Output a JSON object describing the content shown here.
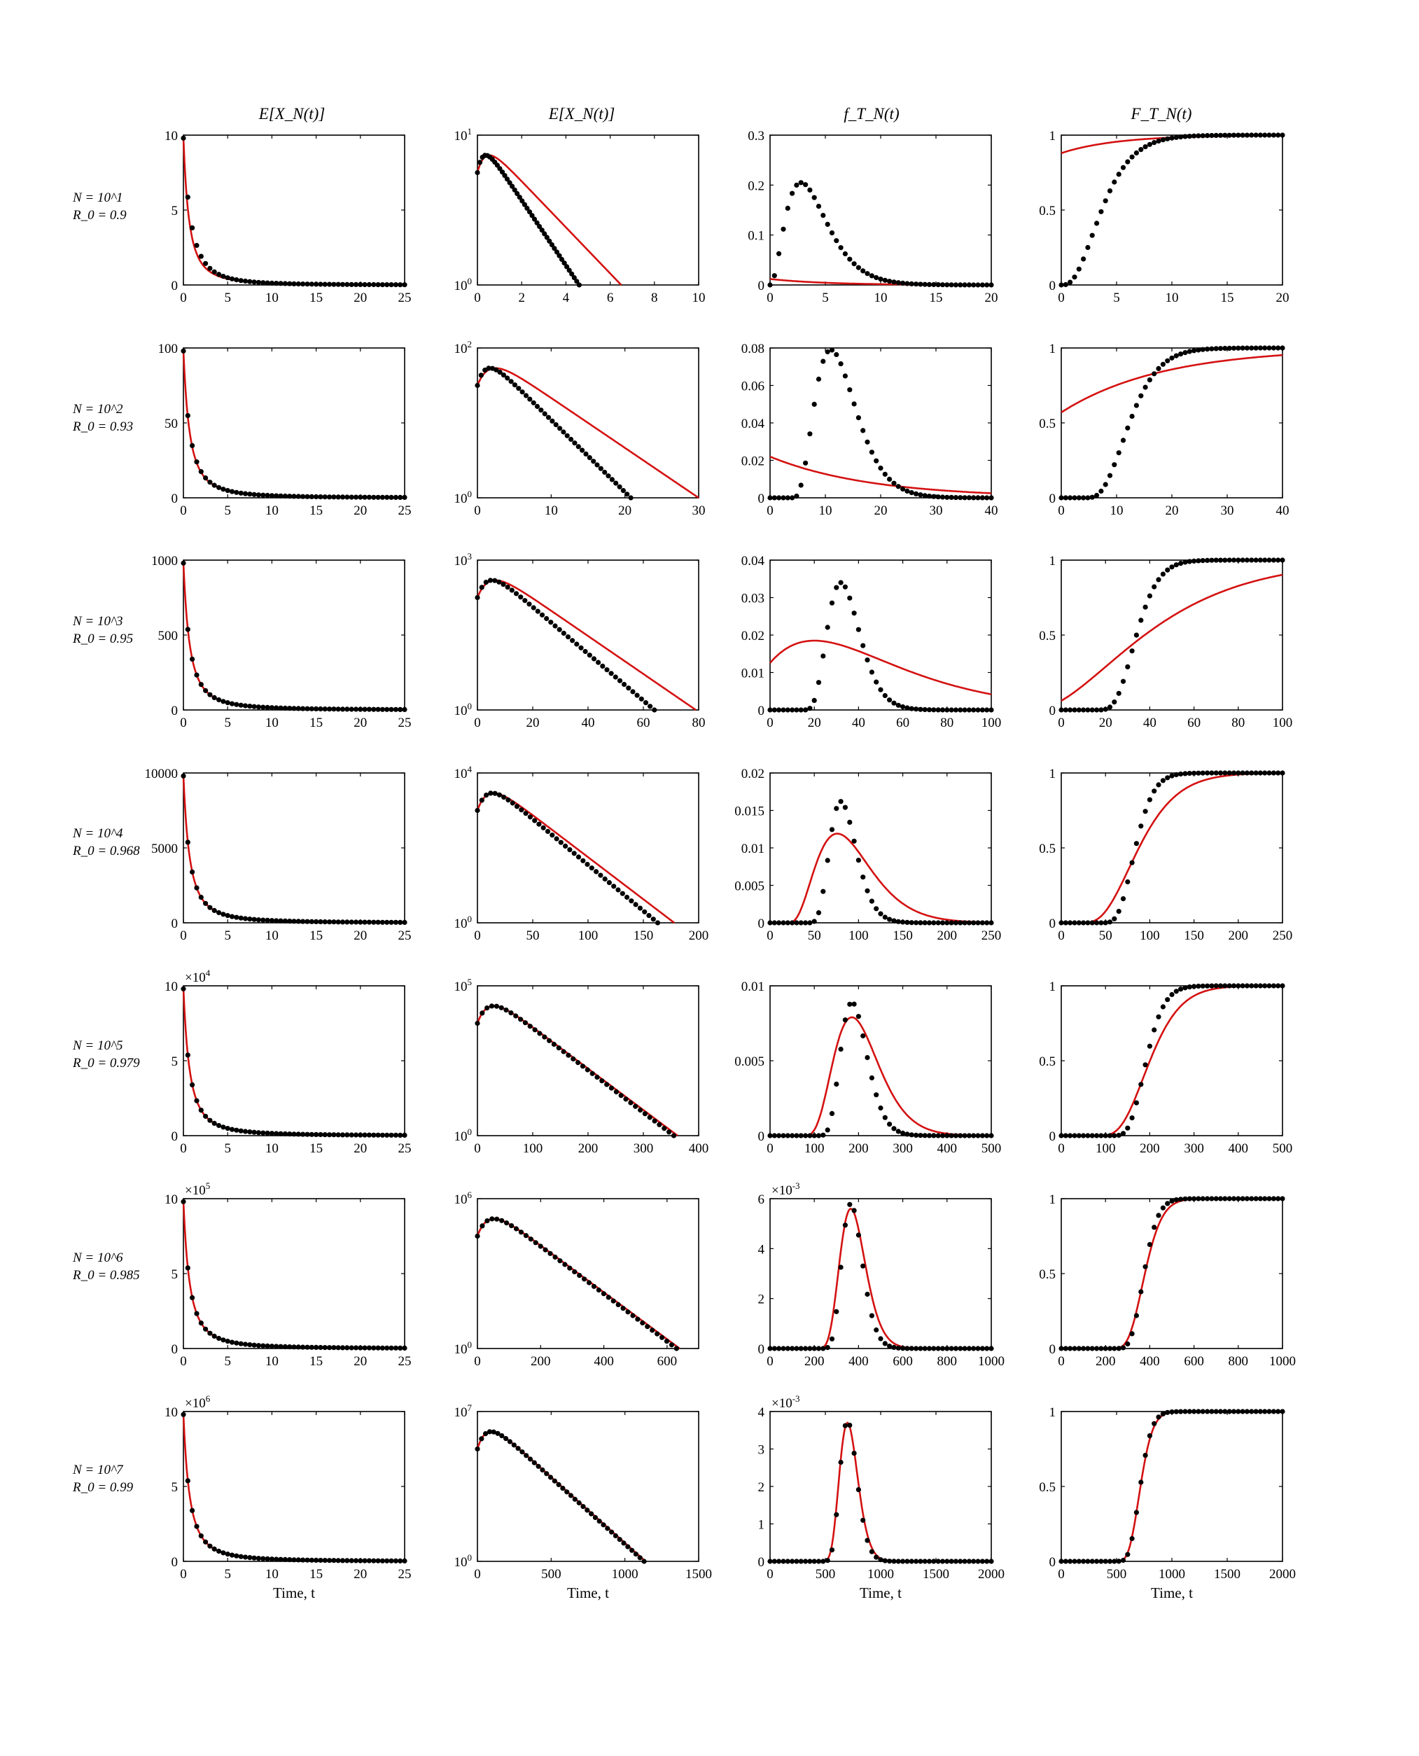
{
  "column_titles": [
    "E[X_N(t)]",
    "E[X_N(t)]",
    "f_T_N(t)",
    "F_T_N(t)"
  ],
  "xlabel": "Time, t",
  "rows": [
    {
      "n_label": "N = 10^1",
      "r_label": "R_0 = 0.9"
    },
    {
      "n_label": "N = 10^2",
      "r_label": "R_0 = 0.93"
    },
    {
      "n_label": "N = 10^3",
      "r_label": "R_0 = 0.95"
    },
    {
      "n_label": "N = 10^4",
      "r_label": "R_0 = 0.968"
    },
    {
      "n_label": "N = 10^5",
      "r_label": "R_0 = 0.979"
    },
    {
      "n_label": "N = 10^6",
      "r_label": "R_0 = 0.985"
    },
    {
      "n_label": "N = 10^7",
      "r_label": "R_0 = 0.99"
    }
  ],
  "colors": {
    "dots": "#000000",
    "line": "#d41111",
    "axis": "#000000"
  },
  "chart_data": [
    {
      "type": "scatter",
      "row": 0,
      "col": 0,
      "xlim": [
        0,
        25
      ],
      "ylim": [
        0,
        10
      ],
      "xticks": [
        "0",
        "5",
        "10",
        "15",
        "20",
        "25"
      ],
      "yticks": [
        "0",
        "5",
        "10"
      ],
      "exponent": "",
      "yscale": "linear",
      "model": {
        "kind": "mean",
        "N": 10,
        "c": 0.9,
        "r": 0.45,
        "p": 1.0
      },
      "series": [
        {
          "kind": "dots",
          "r": 0.8,
          "p": 1.3
        },
        {
          "kind": "line",
          "r": 0.45,
          "p": 1.0
        }
      ]
    },
    {
      "type": "scatter",
      "row": 0,
      "col": 1,
      "xlim": [
        0,
        10
      ],
      "ylim": [
        1,
        10
      ],
      "xticks": [
        "0",
        "2",
        "4",
        "6",
        "8",
        "10"
      ],
      "yticks": [
        "10^0",
        "10^1"
      ],
      "exponent": "",
      "yscale": "log",
      "model": {
        "kind": "logmean",
        "N": 10
      },
      "series": [
        {
          "kind": "dots",
          "end": 4.6
        },
        {
          "kind": "line",
          "end": 6.5
        }
      ]
    },
    {
      "type": "scatter",
      "row": 0,
      "col": 2,
      "xlim": [
        0,
        20
      ],
      "ylim": [
        0,
        0.3
      ],
      "xticks": [
        "0",
        "5",
        "10",
        "15",
        "20"
      ],
      "yticks": [
        "0",
        "0.1",
        "0.2",
        "0.3"
      ],
      "exponent": "",
      "yscale": "linear",
      "series": [
        {
          "kind": "dots",
          "dist": "gamma",
          "peak": 2.8,
          "peakval": 0.205,
          "shape": 3.2
        },
        {
          "kind": "line",
          "dist": "exp",
          "start": 0.012,
          "rate": 0.2
        }
      ]
    },
    {
      "type": "scatter",
      "row": 0,
      "col": 3,
      "xlim": [
        0,
        20
      ],
      "ylim": [
        0,
        1
      ],
      "xticks": [
        "0",
        "5",
        "10",
        "15",
        "20"
      ],
      "yticks": [
        "0",
        "0.5",
        "1"
      ],
      "exponent": "",
      "yscale": "linear",
      "series": [
        {
          "kind": "dots",
          "dist": "gammacdf",
          "peak": 2.8,
          "shape": 3.2
        },
        {
          "kind": "line",
          "dist": "expcdf",
          "start": 0.88,
          "rate": 0.2
        }
      ]
    },
    {
      "type": "scatter",
      "row": 1,
      "col": 0,
      "xlim": [
        0,
        25
      ],
      "ylim": [
        0,
        100
      ],
      "xticks": [
        "0",
        "5",
        "10",
        "15",
        "20",
        "25"
      ],
      "yticks": [
        "0",
        "50",
        "100"
      ],
      "exponent": "",
      "yscale": "linear",
      "model": {
        "kind": "mean",
        "N": 100
      },
      "series": [
        {
          "kind": "dots",
          "r": 0.55,
          "p": 1.05
        },
        {
          "kind": "line",
          "r": 0.5,
          "p": 1.0
        }
      ]
    },
    {
      "type": "scatter",
      "row": 1,
      "col": 1,
      "xlim": [
        0,
        30
      ],
      "ylim": [
        1,
        100
      ],
      "xticks": [
        "0",
        "10",
        "20",
        "30"
      ],
      "yticks": [
        "10^0",
        "10^2"
      ],
      "exponent": "",
      "yscale": "log",
      "model": {
        "kind": "logmean",
        "N": 100
      },
      "series": [
        {
          "kind": "dots",
          "end": 20.8
        },
        {
          "kind": "line",
          "end": 30
        }
      ]
    },
    {
      "type": "scatter",
      "row": 1,
      "col": 2,
      "xlim": [
        0,
        40
      ],
      "ylim": [
        0,
        0.08
      ],
      "xticks": [
        "0",
        "10",
        "20",
        "30",
        "40"
      ],
      "yticks": [
        "0",
        "0.02",
        "0.04",
        "0.06",
        "0.08"
      ],
      "exponent": "",
      "yscale": "linear",
      "series": [
        {
          "kind": "dots",
          "dist": "gamma",
          "peak": 11,
          "peakval": 0.079,
          "shape": 4.5,
          "shift": 4
        },
        {
          "kind": "line",
          "dist": "exp",
          "start": 0.022,
          "rate": 0.055
        }
      ]
    },
    {
      "type": "scatter",
      "row": 1,
      "col": 3,
      "xlim": [
        0,
        40
      ],
      "ylim": [
        0,
        1
      ],
      "xticks": [
        "0",
        "10",
        "20",
        "30",
        "40"
      ],
      "yticks": [
        "0",
        "0.5",
        "1"
      ],
      "exponent": "",
      "yscale": "linear",
      "series": [
        {
          "kind": "dots",
          "dist": "gammacdf",
          "peak": 11,
          "shape": 4.5,
          "shift": 4
        },
        {
          "kind": "line",
          "dist": "expcdf",
          "start": 0.57,
          "rate": 0.055
        }
      ]
    },
    {
      "type": "scatter",
      "row": 2,
      "col": 0,
      "xlim": [
        0,
        25
      ],
      "ylim": [
        0,
        1000
      ],
      "xticks": [
        "0",
        "5",
        "10",
        "15",
        "20",
        "25"
      ],
      "yticks": [
        "0",
        "500",
        "1000"
      ],
      "exponent": "",
      "yscale": "linear",
      "model": {
        "kind": "mean",
        "N": 1000
      },
      "series": [
        {
          "kind": "dots",
          "r": 0.5,
          "p": 1.0
        },
        {
          "kind": "line",
          "r": 0.5,
          "p": 1.0
        }
      ]
    },
    {
      "type": "scatter",
      "row": 2,
      "col": 1,
      "xlim": [
        0,
        80
      ],
      "ylim": [
        1,
        1000
      ],
      "xticks": [
        "0",
        "20",
        "40",
        "60",
        "80"
      ],
      "yticks": [
        "10^0",
        "10^3"
      ],
      "exponent": "",
      "yscale": "log",
      "model": {
        "kind": "logmean",
        "N": 1000
      },
      "series": [
        {
          "kind": "dots",
          "end": 64
        },
        {
          "kind": "line",
          "end": 79
        }
      ]
    },
    {
      "type": "scatter",
      "row": 2,
      "col": 2,
      "xlim": [
        0,
        100
      ],
      "ylim": [
        0,
        0.04
      ],
      "xticks": [
        "0",
        "20",
        "40",
        "60",
        "80",
        "100"
      ],
      "yticks": [
        "0",
        "0.01",
        "0.02",
        "0.03",
        "0.04"
      ],
      "exponent": "",
      "yscale": "linear",
      "series": [
        {
          "kind": "dots",
          "dist": "gamma",
          "peak": 32,
          "peakval": 0.034,
          "shape": 7,
          "shift": 14
        },
        {
          "kind": "line",
          "dist": "gamma",
          "peak": 20,
          "peakval": 0.0185,
          "shape": 2.3,
          "shift": -14
        }
      ]
    },
    {
      "type": "scatter",
      "row": 2,
      "col": 3,
      "xlim": [
        0,
        100
      ],
      "ylim": [
        0,
        1
      ],
      "xticks": [
        "0",
        "20",
        "40",
        "60",
        "80",
        "100"
      ],
      "yticks": [
        "0",
        "0.5",
        "1"
      ],
      "exponent": "",
      "yscale": "linear",
      "series": [
        {
          "kind": "dots",
          "dist": "gammacdf",
          "peak": 32,
          "shape": 7,
          "shift": 14
        },
        {
          "kind": "line",
          "dist": "gammacdf",
          "peak": 20,
          "shape": 2.3,
          "shift": -14
        }
      ]
    },
    {
      "type": "scatter",
      "row": 3,
      "col": 0,
      "xlim": [
        0,
        25
      ],
      "ylim": [
        0,
        10000
      ],
      "xticks": [
        "0",
        "5",
        "10",
        "15",
        "20",
        "25"
      ],
      "yticks": [
        "0",
        "5000",
        "10000"
      ],
      "exponent": "",
      "yscale": "linear",
      "model": {
        "kind": "mean",
        "N": 10000
      },
      "series": [
        {
          "kind": "dots",
          "r": 0.5,
          "p": 1.0
        },
        {
          "kind": "line",
          "r": 0.5,
          "p": 1.0
        }
      ]
    },
    {
      "type": "scatter",
      "row": 3,
      "col": 1,
      "xlim": [
        0,
        200
      ],
      "ylim": [
        1,
        10000
      ],
      "xticks": [
        "0",
        "50",
        "100",
        "150",
        "200"
      ],
      "yticks": [
        "10^0",
        "10^4"
      ],
      "exponent": "",
      "yscale": "log",
      "model": {
        "kind": "logmean",
        "N": 10000
      },
      "series": [
        {
          "kind": "dots",
          "end": 163
        },
        {
          "kind": "line",
          "end": 178
        }
      ]
    },
    {
      "type": "scatter",
      "row": 3,
      "col": 2,
      "xlim": [
        0,
        250
      ],
      "ylim": [
        0,
        0.02
      ],
      "xticks": [
        "0",
        "50",
        "100",
        "150",
        "200",
        "250"
      ],
      "yticks": [
        "0",
        "0.005",
        "0.01",
        "0.015",
        "0.02"
      ],
      "exponent": "",
      "yscale": "linear",
      "series": [
        {
          "kind": "dots",
          "dist": "gamma",
          "peak": 80,
          "peakval": 0.0162,
          "shape": 8,
          "shift": 40
        },
        {
          "kind": "line",
          "dist": "gamma",
          "peak": 76,
          "peakval": 0.0119,
          "shape": 4.2,
          "shift": 20
        }
      ]
    },
    {
      "type": "scatter",
      "row": 3,
      "col": 3,
      "xlim": [
        0,
        250
      ],
      "ylim": [
        0,
        1
      ],
      "xticks": [
        "0",
        "50",
        "100",
        "150",
        "200",
        "250"
      ],
      "yticks": [
        "0",
        "0.5",
        "1"
      ],
      "exponent": "",
      "yscale": "linear",
      "series": [
        {
          "kind": "dots",
          "dist": "gammacdf",
          "peak": 80,
          "shape": 8,
          "shift": 40
        },
        {
          "kind": "line",
          "dist": "gammacdf",
          "peak": 76,
          "shape": 4.2,
          "shift": 20
        }
      ]
    },
    {
      "type": "scatter",
      "row": 4,
      "col": 0,
      "xlim": [
        0,
        25
      ],
      "ylim": [
        0,
        10
      ],
      "xticks": [
        "0",
        "5",
        "10",
        "15",
        "20",
        "25"
      ],
      "yticks": [
        "0",
        "5",
        "10"
      ],
      "exponent": "×10^4",
      "yscale": "linear",
      "model": {
        "kind": "mean",
        "N": 10
      },
      "series": [
        {
          "kind": "dots",
          "r": 0.5,
          "p": 1.0
        },
        {
          "kind": "line",
          "r": 0.5,
          "p": 1.0
        }
      ]
    },
    {
      "type": "scatter",
      "row": 4,
      "col": 1,
      "xlim": [
        0,
        400
      ],
      "ylim": [
        1,
        100000
      ],
      "xticks": [
        "0",
        "100",
        "200",
        "300",
        "400"
      ],
      "yticks": [
        "10^0",
        "10^5"
      ],
      "exponent": "",
      "yscale": "log",
      "model": {
        "kind": "logmean",
        "N": 100000
      },
      "series": [
        {
          "kind": "dots",
          "end": 355
        },
        {
          "kind": "line",
          "end": 362
        }
      ]
    },
    {
      "type": "scatter",
      "row": 4,
      "col": 2,
      "xlim": [
        0,
        500
      ],
      "ylim": [
        0,
        0.01
      ],
      "xticks": [
        "0",
        "100",
        "200",
        "300",
        "400",
        "500"
      ],
      "yticks": [
        "0",
        "0.005",
        "0.01"
      ],
      "exponent": "",
      "yscale": "linear",
      "series": [
        {
          "kind": "dots",
          "dist": "gamma",
          "peak": 185,
          "peakval": 0.0089,
          "shape": 9,
          "shift": 100
        },
        {
          "kind": "line",
          "dist": "gamma",
          "peak": 185,
          "peakval": 0.0079,
          "shape": 6,
          "shift": 70
        }
      ]
    },
    {
      "type": "scatter",
      "row": 4,
      "col": 3,
      "xlim": [
        0,
        500
      ],
      "ylim": [
        0,
        1
      ],
      "xticks": [
        "0",
        "100",
        "200",
        "300",
        "400",
        "500"
      ],
      "yticks": [
        "0",
        "0.5",
        "1"
      ],
      "exponent": "",
      "yscale": "linear",
      "series": [
        {
          "kind": "dots",
          "dist": "gammacdf",
          "peak": 185,
          "shape": 9,
          "shift": 100
        },
        {
          "kind": "line",
          "dist": "gammacdf",
          "peak": 185,
          "shape": 6,
          "shift": 70
        }
      ]
    },
    {
      "type": "scatter",
      "row": 5,
      "col": 0,
      "xlim": [
        0,
        25
      ],
      "ylim": [
        0,
        10
      ],
      "xticks": [
        "0",
        "5",
        "10",
        "15",
        "20",
        "25"
      ],
      "yticks": [
        "0",
        "5",
        "10"
      ],
      "exponent": "×10^5",
      "yscale": "linear",
      "model": {
        "kind": "mean",
        "N": 10
      },
      "series": [
        {
          "kind": "dots",
          "r": 0.5,
          "p": 1.0
        },
        {
          "kind": "line",
          "r": 0.5,
          "p": 1.0
        }
      ]
    },
    {
      "type": "scatter",
      "row": 5,
      "col": 1,
      "xlim": [
        0,
        700
      ],
      "ylim": [
        1,
        1000000
      ],
      "xticks": [
        "0",
        "200",
        "400",
        "600"
      ],
      "yticks": [
        "10^0",
        "10^6"
      ],
      "exponent": "",
      "yscale": "log",
      "model": {
        "kind": "logmean",
        "N": 1000000
      },
      "series": [
        {
          "kind": "dots",
          "end": 630
        },
        {
          "kind": "line",
          "end": 640
        }
      ]
    },
    {
      "type": "scatter",
      "row": 5,
      "col": 2,
      "xlim": [
        0,
        1000
      ],
      "ylim": [
        0,
        6
      ],
      "xticks": [
        "0",
        "200",
        "400",
        "600",
        "800",
        "1000"
      ],
      "yticks": [
        "0",
        "2",
        "4",
        "6"
      ],
      "exponent": "×10^-3",
      "yscale": "linear",
      "series": [
        {
          "kind": "dots",
          "dist": "gamma",
          "peak": 365,
          "peakval": 5.8,
          "shape": 12,
          "shift": 210
        },
        {
          "kind": "line",
          "dist": "gamma",
          "peak": 365,
          "peakval": 5.6,
          "shape": 10,
          "shift": 190
        }
      ]
    },
    {
      "type": "scatter",
      "row": 5,
      "col": 3,
      "xlim": [
        0,
        1000
      ],
      "ylim": [
        0,
        1
      ],
      "xticks": [
        "0",
        "200",
        "400",
        "600",
        "800",
        "1000"
      ],
      "yticks": [
        "0",
        "0.5",
        "1"
      ],
      "exponent": "",
      "yscale": "linear",
      "series": [
        {
          "kind": "dots",
          "dist": "gammacdf",
          "peak": 365,
          "shape": 12,
          "shift": 210
        },
        {
          "kind": "line",
          "dist": "gammacdf",
          "peak": 365,
          "shape": 10,
          "shift": 190
        }
      ]
    },
    {
      "type": "scatter",
      "row": 6,
      "col": 0,
      "xlim": [
        0,
        25
      ],
      "ylim": [
        0,
        10
      ],
      "xticks": [
        "0",
        "5",
        "10",
        "15",
        "20",
        "25"
      ],
      "yticks": [
        "0",
        "5",
        "10"
      ],
      "exponent": "×10^6",
      "yscale": "linear",
      "model": {
        "kind": "mean",
        "N": 10
      },
      "series": [
        {
          "kind": "dots",
          "r": 0.5,
          "p": 1.0
        },
        {
          "kind": "line",
          "r": 0.5,
          "p": 1.0
        }
      ]
    },
    {
      "type": "scatter",
      "row": 6,
      "col": 1,
      "xlim": [
        0,
        1500
      ],
      "ylim": [
        1,
        10000000
      ],
      "xticks": [
        "0",
        "500",
        "1000",
        "1500"
      ],
      "yticks": [
        "10^0",
        "10^7"
      ],
      "exponent": "",
      "yscale": "log",
      "model": {
        "kind": "logmean",
        "N": 10000000
      },
      "series": [
        {
          "kind": "dots",
          "end": 1130
        },
        {
          "kind": "line",
          "end": 1140
        }
      ]
    },
    {
      "type": "scatter",
      "row": 6,
      "col": 2,
      "xlim": [
        0,
        2000
      ],
      "ylim": [
        0,
        4
      ],
      "xticks": [
        "0",
        "500",
        "1000",
        "1500",
        "2000"
      ],
      "yticks": [
        "0",
        "1",
        "2",
        "3",
        "4"
      ],
      "exponent": "×10^-3",
      "yscale": "linear",
      "series": [
        {
          "kind": "dots",
          "dist": "gamma",
          "peak": 700,
          "peakval": 3.75,
          "shape": 14,
          "shift": 420
        },
        {
          "kind": "line",
          "dist": "gamma",
          "peak": 700,
          "peakval": 3.7,
          "shape": 13,
          "shift": 410
        }
      ]
    },
    {
      "type": "scatter",
      "row": 6,
      "col": 3,
      "xlim": [
        0,
        2000
      ],
      "ylim": [
        0,
        1
      ],
      "xticks": [
        "0",
        "500",
        "1000",
        "1500",
        "2000"
      ],
      "yticks": [
        "0",
        "0.5",
        "1"
      ],
      "exponent": "",
      "yscale": "linear",
      "series": [
        {
          "kind": "dots",
          "dist": "gammacdf",
          "peak": 700,
          "shape": 14,
          "shift": 420
        },
        {
          "kind": "line",
          "dist": "gammacdf",
          "peak": 700,
          "shape": 13,
          "shift": 410
        }
      ]
    }
  ]
}
